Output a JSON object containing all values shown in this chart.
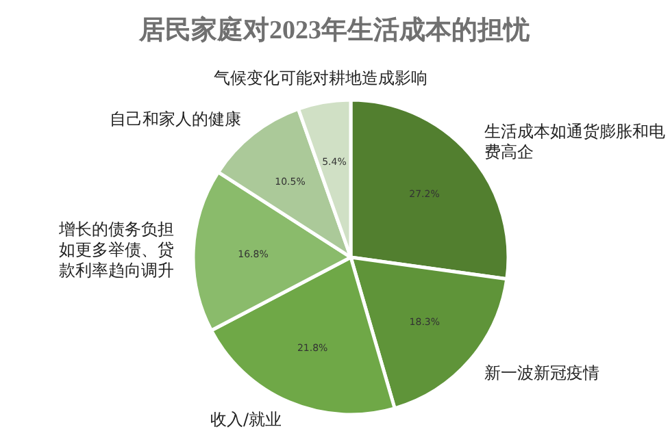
{
  "chart_data": {
    "type": "pie",
    "title": "居民家庭对2023年生活成本的担忧",
    "categories": [
      "生活成本如通货膨胀和电费高企",
      "新一波新冠疫情",
      "收入/就业",
      "增长的债务负担如更多举债、贷款利率趋向调升",
      "自己和家人的健康",
      "气候变化可能对耕地造成影响"
    ],
    "values": [
      27.2,
      18.3,
      21.8,
      16.8,
      10.5,
      5.4
    ],
    "value_labels": [
      "27.2%",
      "18.3%",
      "21.8%",
      "16.8%",
      "10.5%",
      "5.4%"
    ],
    "colors": [
      "#527f2f",
      "#5f9439",
      "#6fa847",
      "#8abb6b",
      "#abc999",
      "#d0e0c5"
    ]
  }
}
